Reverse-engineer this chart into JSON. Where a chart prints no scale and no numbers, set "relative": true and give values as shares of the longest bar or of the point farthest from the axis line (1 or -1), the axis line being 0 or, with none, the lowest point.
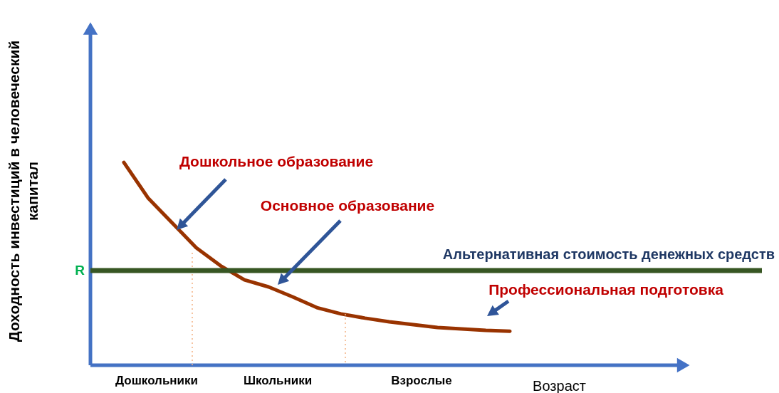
{
  "chart_data": {
    "type": "line",
    "relative": true,
    "xlabel": "Возраст",
    "ylabel": "Доходность инвестиций в человеческий капитал",
    "categories": [
      null,
      null,
      null,
      null,
      null,
      null,
      null,
      null,
      null,
      null,
      null,
      null,
      null,
      null,
      null,
      null,
      null
    ],
    "series": [
      {
        "color": "#993300",
        "values": [
          1,
          0.825,
          0.702,
          0.579,
          0.491,
          0.421,
          0.386,
          0.337,
          0.284,
          0.253,
          0.232,
          0.214,
          0.2,
          0.186,
          0.179,
          0.172,
          0.168
        ]
      }
    ],
    "ref_lines": [
      {
        "axis": "y",
        "value": 0.467,
        "label": "Альтернативная стоимость денежных средств",
        "color": "#375623"
      }
    ],
    "annotations": [
      "Дошкольное образование",
      "Основное образование",
      "Профессиональная подготовка",
      "R",
      "Дошкольники",
      "Школьники",
      "Взрослые"
    ]
  }
}
